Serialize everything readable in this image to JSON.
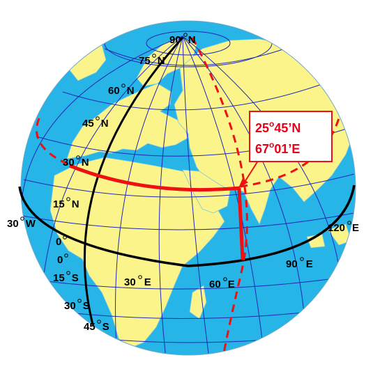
{
  "map": {
    "colors": {
      "ocean": "#27b4e6",
      "land": "#fbf48a",
      "graticule": "#1f28b4",
      "equator": "#000000",
      "highlight": "#ee1111",
      "callout_border": "#ee1111"
    },
    "coordinate": {
      "lat": "25°45’N",
      "lon": "67°01’E",
      "lat_sup": "o",
      "lon_sup": "o",
      "lat_rest": "45’N",
      "lon_rest": "01’E",
      "lat_deg": "25",
      "lon_deg": "67"
    },
    "labels": {
      "n90": {
        "num": "90",
        "dir": "N"
      },
      "n75": {
        "num": "75",
        "dir": "N"
      },
      "n60": {
        "num": "60",
        "dir": "N"
      },
      "n45": {
        "num": "45",
        "dir": "N"
      },
      "n30": {
        "num": "30",
        "dir": "N"
      },
      "n15": {
        "num": "15",
        "dir": "N"
      },
      "eq0a": {
        "num": "0"
      },
      "eq0b": {
        "num": "0"
      },
      "s15": {
        "num": "15",
        "dir": "S"
      },
      "s30": {
        "num": "30",
        "dir": "S"
      },
      "s45": {
        "num": "45",
        "dir": "S"
      },
      "w30": {
        "num": "30",
        "dir": "W"
      },
      "e30": {
        "num": "30",
        "dir": "E"
      },
      "e60": {
        "num": "60",
        "dir": "E"
      },
      "e90": {
        "num": "90",
        "dir": "E"
      },
      "e120": {
        "num": "120",
        "dir": "E"
      }
    }
  }
}
